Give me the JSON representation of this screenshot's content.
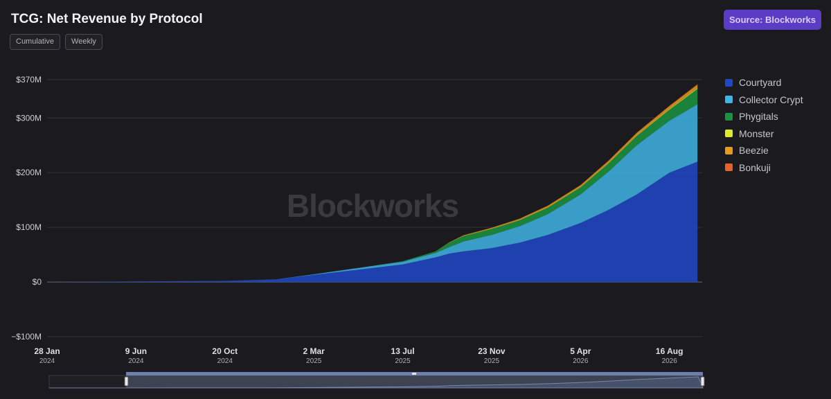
{
  "header": {
    "title": "TCG: Net Revenue by Protocol"
  },
  "toggles": [
    {
      "label": "Cumulative"
    },
    {
      "label": "Weekly"
    }
  ],
  "source_button": {
    "label": "Source: Blockworks"
  },
  "watermark": "Blockworks",
  "chart_data": {
    "type": "area",
    "stacked": true,
    "title": "TCG: Net Revenue by Protocol",
    "ylim": [
      -100,
      370
    ],
    "y_unit": "$M",
    "y_ticks": [
      {
        "value": 370,
        "label": "$370M"
      },
      {
        "value": 300,
        "label": "$300M"
      },
      {
        "value": 200,
        "label": "$200M"
      },
      {
        "value": 100,
        "label": "$100M"
      },
      {
        "value": 0,
        "label": "$0"
      },
      {
        "value": -100,
        "label": "−$100M"
      }
    ],
    "x_range": [
      "2024-01-28",
      "2026-10-04"
    ],
    "x_ticks": [
      {
        "date": "2024-01-28",
        "label": "28 Jan",
        "year": "2024"
      },
      {
        "date": "2024-06-09",
        "label": "9 Jun",
        "year": "2024"
      },
      {
        "date": "2024-10-20",
        "label": "20 Oct",
        "year": "2024"
      },
      {
        "date": "2025-03-02",
        "label": "2 Mar",
        "year": "2025"
      },
      {
        "date": "2025-07-13",
        "label": "13 Jul",
        "year": "2025"
      },
      {
        "date": "2025-11-23",
        "label": "23 Nov",
        "year": "2025"
      },
      {
        "date": "2026-04-05",
        "label": "5 Apr",
        "year": "2026"
      },
      {
        "date": "2026-08-16",
        "label": "16 Aug",
        "year": "2026"
      }
    ],
    "x": [
      "2024-01-28",
      "2024-06-09",
      "2024-10-20",
      "2025-01-05",
      "2025-03-02",
      "2025-05-04",
      "2025-07-13",
      "2025-08-31",
      "2025-09-21",
      "2025-10-12",
      "2025-11-23",
      "2026-01-04",
      "2026-02-15",
      "2026-04-05",
      "2026-05-17",
      "2026-06-28",
      "2026-08-16",
      "2026-09-27"
    ],
    "series": [
      {
        "name": "Courtyard",
        "color": "#1f48c9",
        "values": [
          0,
          1,
          2,
          5,
          13,
          22,
          32,
          45,
          52,
          56,
          62,
          72,
          86,
          108,
          132,
          160,
          200,
          220
        ]
      },
      {
        "name": "Collector Crypt",
        "color": "#3fb4e6",
        "values": [
          0,
          0,
          0,
          0,
          1,
          3,
          5,
          8,
          12,
          18,
          24,
          30,
          38,
          52,
          70,
          90,
          95,
          105
        ]
      },
      {
        "name": "Phygitals",
        "color": "#1a9440",
        "values": [
          0,
          0,
          0,
          0,
          0,
          0,
          1,
          3,
          8,
          10,
          11,
          11,
          12,
          13,
          15,
          17,
          20,
          28
        ]
      },
      {
        "name": "Monster",
        "color": "#dfe82a",
        "values": [
          0,
          0,
          0,
          0,
          0,
          0,
          0,
          0,
          0.3,
          0.5,
          0.5,
          0.6,
          0.7,
          0.8,
          1,
          1.2,
          1.5,
          1.8
        ]
      },
      {
        "name": "Beezie",
        "color": "#e79a1c",
        "values": [
          0,
          0,
          0,
          0,
          0,
          0,
          0,
          0,
          0.5,
          1,
          1.5,
          2,
          2.5,
          3,
          3.5,
          4,
          5,
          6
        ]
      },
      {
        "name": "Bonkuji",
        "color": "#e8602a",
        "values": [
          0,
          0,
          0,
          0,
          0,
          0,
          0,
          0,
          0,
          0,
          0.2,
          0.3,
          0.4,
          0.5,
          0.6,
          0.7,
          0.8,
          1
        ]
      }
    ]
  }
}
